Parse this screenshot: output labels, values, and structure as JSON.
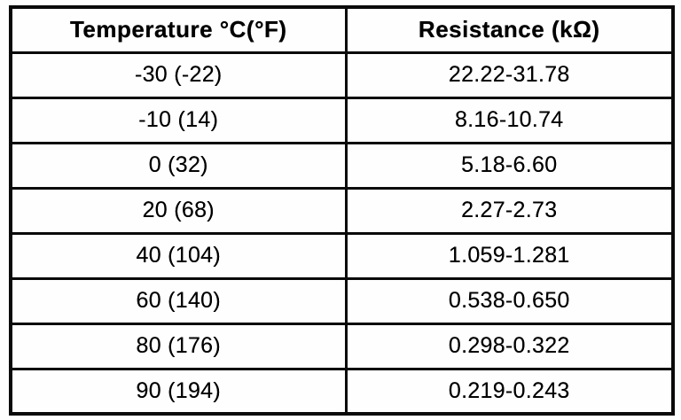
{
  "document": {
    "kind": "scanned-specification-table"
  },
  "table": {
    "headers": [
      "Temperature °C(°F)",
      "Resistance (kΩ)"
    ],
    "rows": [
      [
        "-30 (-22)",
        "22.22-31.78"
      ],
      [
        "-10 (14)",
        "8.16-10.74"
      ],
      [
        "0 (32)",
        "5.18-6.60"
      ],
      [
        "20 (68)",
        "2.27-2.73"
      ],
      [
        "40 (104)",
        "1.059-1.281"
      ],
      [
        "60 (140)",
        "0.538-0.650"
      ],
      [
        "80 (176)",
        "0.298-0.322"
      ],
      [
        "90 (194)",
        "0.219-0.243"
      ]
    ]
  },
  "colors": {
    "ink": "#0a0a0a",
    "paper": "#fefefe"
  }
}
